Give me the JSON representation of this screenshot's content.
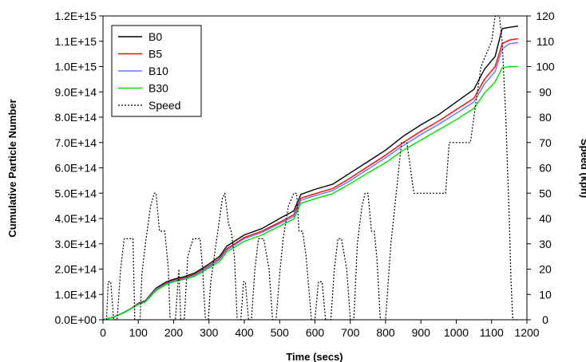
{
  "chart_data": {
    "type": "line",
    "xlabel": "Time (secs)",
    "ylabel": "Cumulative Particle Number",
    "y2label": "Speed (kph)",
    "xlim": [
      0,
      1200
    ],
    "ylim": [
      0,
      1200000000000000.0
    ],
    "y2lim": [
      0,
      120
    ],
    "x_ticks": [
      "0",
      "100",
      "200",
      "300",
      "400",
      "500",
      "600",
      "700",
      "800",
      "900",
      "1000",
      "1100",
      "1200"
    ],
    "y_ticks": [
      "0.0E+00",
      "1.0E+14",
      "2.0E+14",
      "3.0E+14",
      "4.0E+14",
      "5.0E+14",
      "6.0E+14",
      "7.0E+14",
      "8.0E+14",
      "9.0E+14",
      "1.0E+15",
      "1.1E+15",
      "1.2E+15"
    ],
    "y2_ticks": [
      "0",
      "10",
      "20",
      "30",
      "40",
      "50",
      "60",
      "70",
      "80",
      "90",
      "100",
      "110",
      "120"
    ],
    "grid": false,
    "legend_position": "top-left",
    "series": [
      {
        "name": "B0",
        "color": "#000000",
        "dash": "solid",
        "axis": "left",
        "x": [
          0,
          30,
          60,
          80,
          100,
          120,
          150,
          180,
          200,
          230,
          260,
          300,
          330,
          350,
          400,
          450,
          500,
          540,
          560,
          600,
          650,
          700,
          750,
          800,
          850,
          900,
          950,
          1000,
          1050,
          1080,
          1110,
          1130,
          1150,
          1175
        ],
        "y": [
          0,
          10000000000000.0,
          30000000000000.0,
          45000000000000.0,
          65000000000000.0,
          75000000000000.0,
          125000000000000.0,
          150000000000000.0,
          160000000000000.0,
          170000000000000.0,
          185000000000000.0,
          220000000000000.0,
          250000000000000.0,
          290000000000000.0,
          335000000000000.0,
          360000000000000.0,
          400000000000000.0,
          430000000000000.0,
          495000000000000.0,
          515000000000000.0,
          535000000000000.0,
          580000000000000.0,
          625000000000000.0,
          670000000000000.0,
          725000000000000.0,
          770000000000000.0,
          810000000000000.0,
          860000000000000.0,
          910000000000000.0,
          990000000000000.0,
          1040000000000000.0,
          1150000000000000.0,
          1155000000000000.0,
          1160000000000000.0
        ]
      },
      {
        "name": "B5",
        "color": "#ff0000",
        "dash": "solid",
        "axis": "left",
        "x": [
          0,
          30,
          60,
          80,
          100,
          120,
          150,
          180,
          200,
          230,
          260,
          300,
          330,
          350,
          400,
          450,
          500,
          540,
          560,
          600,
          650,
          700,
          750,
          800,
          850,
          900,
          950,
          1000,
          1050,
          1080,
          1110,
          1130,
          1150,
          1175
        ],
        "y": [
          0,
          10000000000000.0,
          30000000000000.0,
          45000000000000.0,
          63000000000000.0,
          73000000000000.0,
          122000000000000.0,
          145000000000000.0,
          155000000000000.0,
          165000000000000.0,
          180000000000000.0,
          213000000000000.0,
          242000000000000.0,
          280000000000000.0,
          325000000000000.0,
          350000000000000.0,
          385000000000000.0,
          415000000000000.0,
          480000000000000.0,
          498000000000000.0,
          518000000000000.0,
          560000000000000.0,
          605000000000000.0,
          650000000000000.0,
          700000000000000.0,
          745000000000000.0,
          785000000000000.0,
          830000000000000.0,
          875000000000000.0,
          950000000000000.0,
          1000000000000000.0,
          1090000000000000.0,
          1105000000000000.0,
          1110000000000000.0
        ]
      },
      {
        "name": "B10",
        "color": "#5b7bff",
        "dash": "solid",
        "axis": "left",
        "x": [
          0,
          30,
          60,
          80,
          100,
          120,
          150,
          180,
          200,
          230,
          260,
          300,
          330,
          350,
          400,
          450,
          500,
          540,
          560,
          600,
          650,
          700,
          750,
          800,
          850,
          900,
          950,
          1000,
          1050,
          1080,
          1110,
          1130,
          1150,
          1175
        ],
        "y": [
          0,
          10000000000000.0,
          30000000000000.0,
          45000000000000.0,
          62000000000000.0,
          72000000000000.0,
          120000000000000.0,
          143000000000000.0,
          153000000000000.0,
          162000000000000.0,
          177000000000000.0,
          210000000000000.0,
          238000000000000.0,
          275000000000000.0,
          320000000000000.0,
          345000000000000.0,
          380000000000000.0,
          408000000000000.0,
          472000000000000.0,
          490000000000000.0,
          510000000000000.0,
          550000000000000.0,
          595000000000000.0,
          640000000000000.0,
          688000000000000.0,
          732000000000000.0,
          772000000000000.0,
          815000000000000.0,
          860000000000000.0,
          932000000000000.0,
          980000000000000.0,
          1070000000000000.0,
          1090000000000000.0,
          1095000000000000.0
        ]
      },
      {
        "name": "B30",
        "color": "#00dd00",
        "dash": "solid",
        "axis": "left",
        "x": [
          0,
          30,
          60,
          80,
          100,
          120,
          150,
          180,
          200,
          230,
          260,
          300,
          330,
          350,
          400,
          450,
          500,
          540,
          560,
          600,
          650,
          700,
          750,
          800,
          850,
          900,
          950,
          1000,
          1050,
          1080,
          1110,
          1130,
          1150,
          1175
        ],
        "y": [
          0,
          10000000000000.0,
          28000000000000.0,
          43000000000000.0,
          60000000000000.0,
          70000000000000.0,
          115000000000000.0,
          140000000000000.0,
          150000000000000.0,
          160000000000000.0,
          172000000000000.0,
          205000000000000.0,
          230000000000000.0,
          268000000000000.0,
          310000000000000.0,
          335000000000000.0,
          370000000000000.0,
          398000000000000.0,
          460000000000000.0,
          478000000000000.0,
          498000000000000.0,
          538000000000000.0,
          580000000000000.0,
          620000000000000.0,
          670000000000000.0,
          710000000000000.0,
          750000000000000.0,
          790000000000000.0,
          835000000000000.0,
          895000000000000.0,
          940000000000000.0,
          995000000000000.0,
          1000000000000000.0,
          1000000000000000.0
        ]
      },
      {
        "name": "Speed",
        "color": "#000000",
        "dash": "dotted",
        "axis": "right",
        "x": [
          0,
          10,
          15,
          22,
          30,
          40,
          50,
          60,
          65,
          70,
          85,
          90,
          95,
          100,
          105,
          110,
          120,
          135,
          145,
          150,
          160,
          168,
          175,
          185,
          190,
          198,
          205,
          215,
          220,
          230,
          240,
          255,
          275,
          282,
          290,
          298,
          305,
          320,
          338,
          345,
          355,
          363,
          372,
          380,
          390,
          398,
          403,
          412,
          420,
          430,
          440,
          455,
          470,
          480,
          490,
          500,
          510,
          525,
          540,
          548,
          555,
          565,
          575,
          590,
          600,
          610,
          620,
          630,
          645,
          655,
          665,
          675,
          690,
          700,
          710,
          720,
          733,
          742,
          750,
          760,
          768,
          775,
          785,
          800,
          815,
          830,
          845,
          855,
          860,
          880,
          890,
          895,
          930,
          945,
          970,
          980,
          1000,
          1020,
          1040,
          1055,
          1070,
          1100,
          1110,
          1122,
          1130,
          1140,
          1150,
          1155,
          1160,
          1165,
          1175
        ],
        "y": [
          0,
          0,
          15,
          15,
          0,
          0,
          20,
          32,
          32,
          32,
          32,
          0,
          0,
          0,
          0,
          18,
          30,
          45,
          50,
          50,
          35,
          35,
          35,
          20,
          0,
          0,
          0,
          20,
          0,
          0,
          25,
          32,
          32,
          20,
          0,
          0,
          15,
          30,
          48,
          50,
          38,
          35,
          25,
          0,
          0,
          15,
          15,
          0,
          0,
          20,
          32,
          32,
          20,
          0,
          0,
          18,
          32,
          45,
          50,
          50,
          35,
          35,
          25,
          0,
          0,
          15,
          15,
          0,
          0,
          20,
          32,
          32,
          20,
          0,
          0,
          30,
          45,
          50,
          50,
          35,
          35,
          25,
          0,
          0,
          30,
          50,
          70,
          70,
          70,
          50,
          50,
          50,
          50,
          50,
          50,
          70,
          70,
          70,
          70,
          85,
          100,
          110,
          120,
          120,
          110,
          80,
          40,
          15,
          0,
          0,
          0
        ]
      }
    ]
  }
}
